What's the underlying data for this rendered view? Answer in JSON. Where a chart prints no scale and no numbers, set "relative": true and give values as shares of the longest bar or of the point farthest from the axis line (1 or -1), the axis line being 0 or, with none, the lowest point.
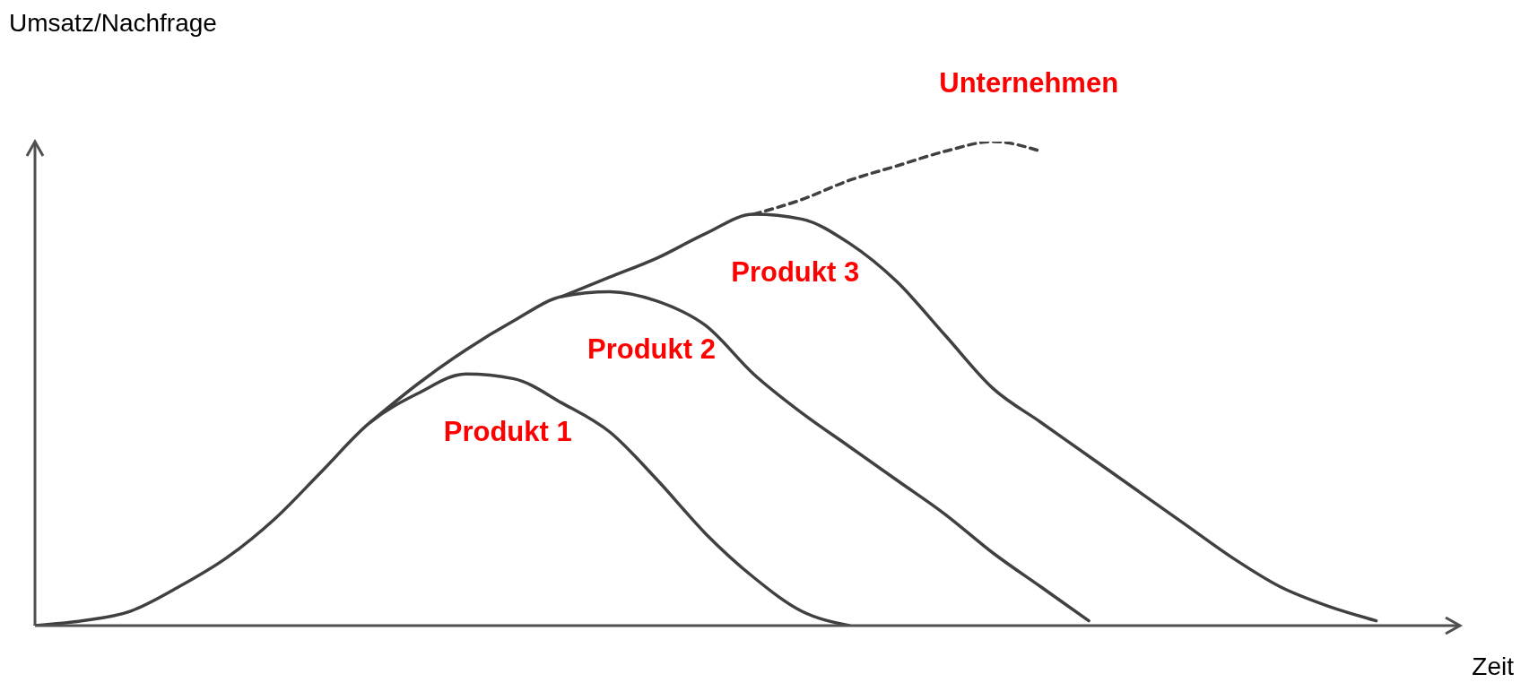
{
  "chart_data": {
    "type": "line",
    "relative": true,
    "xlabel": "Zeit",
    "ylabel": "Umsatz/Nachfrage",
    "grid": false,
    "legend": false,
    "marker": "none",
    "categories": [
      null,
      null,
      null,
      null,
      null,
      null,
      null,
      null,
      null,
      null,
      null,
      null,
      null,
      null,
      null,
      null,
      null,
      null,
      null,
      null,
      null,
      null,
      null,
      null,
      null,
      null,
      null,
      null,
      null,
      null
    ],
    "series": [
      {
        "name": "Produkt 1",
        "color": "#404040",
        "line_style": "solid",
        "values": [
          0,
          0.01,
          0.03,
          0.08,
          0.14,
          0.22,
          0.32,
          0.42,
          0.48,
          0.52,
          0.51,
          0.46,
          0.4,
          0.3,
          0.19,
          0.1,
          0.03,
          0,
          null,
          null,
          null,
          null,
          null,
          null,
          null,
          null,
          null,
          null,
          null,
          null
        ]
      },
      {
        "name": "Produkt 2",
        "color": "#404040",
        "line_style": "solid",
        "values": [
          null,
          null,
          null,
          null,
          null,
          null,
          null,
          0.42,
          0.5,
          0.57,
          0.63,
          0.68,
          0.69,
          0.67,
          0.62,
          0.52,
          0.44,
          0.37,
          0.3,
          0.23,
          0.15,
          0.08,
          0.01,
          null,
          null,
          null,
          null,
          null,
          null,
          null
        ]
      },
      {
        "name": "Produkt 3",
        "color": "#404040",
        "line_style": "solid",
        "values": [
          null,
          null,
          null,
          null,
          null,
          null,
          null,
          null,
          null,
          null,
          null,
          0.68,
          0.72,
          0.76,
          0.81,
          0.85,
          0.84,
          0.79,
          0.71,
          0.6,
          0.49,
          0.42,
          0.35,
          0.28,
          0.21,
          0.14,
          0.08,
          0.04,
          0.01,
          null
        ]
      },
      {
        "name": "Unternehmen",
        "color": "#404040",
        "line_style": "dashed",
        "values": [
          null,
          null,
          null,
          null,
          null,
          null,
          null,
          null,
          null,
          null,
          null,
          null,
          null,
          null,
          null,
          0.85,
          0.88,
          0.92,
          0.95,
          0.98,
          1,
          0.98,
          null,
          null,
          null,
          null,
          null,
          null,
          null,
          null
        ]
      }
    ]
  }
}
